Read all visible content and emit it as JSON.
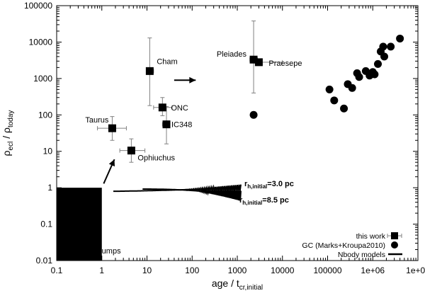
{
  "chart_data": {
    "type": "scatter",
    "xscale": "log",
    "yscale": "log",
    "xlim": [
      0.1,
      10000000
    ],
    "ylim": [
      0.01,
      100000
    ],
    "xlabel": "age / t",
    "xlabel_sub": "cr,initial",
    "ylabel_main": "ρ",
    "ylabel_sub1": "ecl",
    "ylabel_sep": " / ρ",
    "ylabel_sub2": "today",
    "x_ticks": [
      0.1,
      1,
      10,
      100,
      1000,
      10000,
      100000,
      1000000,
      10000000
    ],
    "x_tick_labels": [
      "0.1",
      "1",
      "10",
      "100",
      "1000",
      "10000",
      "100000",
      "1e+06",
      "1e+07"
    ],
    "y_ticks": [
      0.01,
      0.1,
      1,
      10,
      100,
      1000,
      10000,
      100000
    ],
    "y_tick_labels": [
      "0.01",
      "0.1",
      "1",
      "10",
      "100",
      "1000",
      "10000",
      "100000"
    ],
    "series": [
      {
        "name": "this work",
        "marker": "square",
        "points": [
          {
            "label": "Taurus",
            "x": 1.7,
            "y": 43,
            "xerr": [
              0.8,
              3.5
            ],
            "yerr": [
              20,
              90
            ]
          },
          {
            "label": "Ophiuchus",
            "x": 4.5,
            "y": 10.5,
            "xerr": [
              2.5,
              9
            ],
            "yerr": [
              5,
              22
            ]
          },
          {
            "label": "Cham",
            "x": 11.5,
            "y": 1600,
            "xerr": [
              10,
              14
            ],
            "yerr": [
              180,
              13000
            ]
          },
          {
            "label": "ONC",
            "x": 22,
            "y": 160,
            "xerr": [
              14,
              36
            ],
            "yerr": [
              95,
              300
            ]
          },
          {
            "label": "IC348",
            "x": 27,
            "y": 55,
            "xerr": [
              22,
              32
            ],
            "yerr": [
              16,
              170
            ]
          },
          {
            "label": "Pleiades",
            "x": 2300,
            "y": 3300,
            "xerr": [
              1900,
              2800
            ],
            "yerr": [
              400,
              38000
            ]
          },
          {
            "label": "Praesepe",
            "x": 3000,
            "y": 2800,
            "xerr": [
              2500,
              10000
            ],
            "yerr": [
              2800,
              2800
            ]
          }
        ]
      },
      {
        "name": "GC (Marks+Kroupa2010)",
        "marker": "circle",
        "points": [
          {
            "x": 2300,
            "y": 100
          },
          {
            "x": 110000,
            "y": 500
          },
          {
            "x": 140000,
            "y": 250
          },
          {
            "x": 230000,
            "y": 150
          },
          {
            "x": 280000,
            "y": 700
          },
          {
            "x": 350000,
            "y": 550
          },
          {
            "x": 450000,
            "y": 1400
          },
          {
            "x": 500000,
            "y": 1100
          },
          {
            "x": 700000,
            "y": 1600
          },
          {
            "x": 850000,
            "y": 1200
          },
          {
            "x": 1000000,
            "y": 1500
          },
          {
            "x": 1100000,
            "y": 1300
          },
          {
            "x": 1300000,
            "y": 2500
          },
          {
            "x": 1500000,
            "y": 5500
          },
          {
            "x": 1700000,
            "y": 7500
          },
          {
            "x": 1800000,
            "y": 4000
          },
          {
            "x": 2500000,
            "y": 7500
          },
          {
            "x": 4000000,
            "y": 12500
          }
        ]
      },
      {
        "name": "Nbody models",
        "marker": "line",
        "lines": [
          {
            "label": "r_h,initial=3.0 pc",
            "x_start": 1.8,
            "x_end": 1200,
            "y_start": 0.8,
            "y_end": 1.0
          },
          {
            "label": "r_h,initial=8.5 pc",
            "x_start": 8,
            "x_end": 1200,
            "y_start": 0.92,
            "y_end": 0.6
          }
        ]
      }
    ],
    "molecular_clumps_box": {
      "x": [
        0.1,
        1
      ],
      "y": [
        0.01,
        1
      ],
      "label": "molecular clumps"
    },
    "annotations": {
      "rh1_base": "r",
      "rh1_sub": "h,initial",
      "rh1_tail": "=3.0 pc",
      "rh2_base": "r",
      "rh2_sub": "h,initial",
      "rh2_tail": "=8.5 pc"
    },
    "legend": {
      "position": "bottom-right",
      "entries": [
        "this work",
        "GC (Marks+Kroupa2010)",
        "Nbody models"
      ]
    },
    "colors": {
      "ink": "#000000",
      "errorbar": "#808080",
      "background": "#ffffff"
    }
  }
}
